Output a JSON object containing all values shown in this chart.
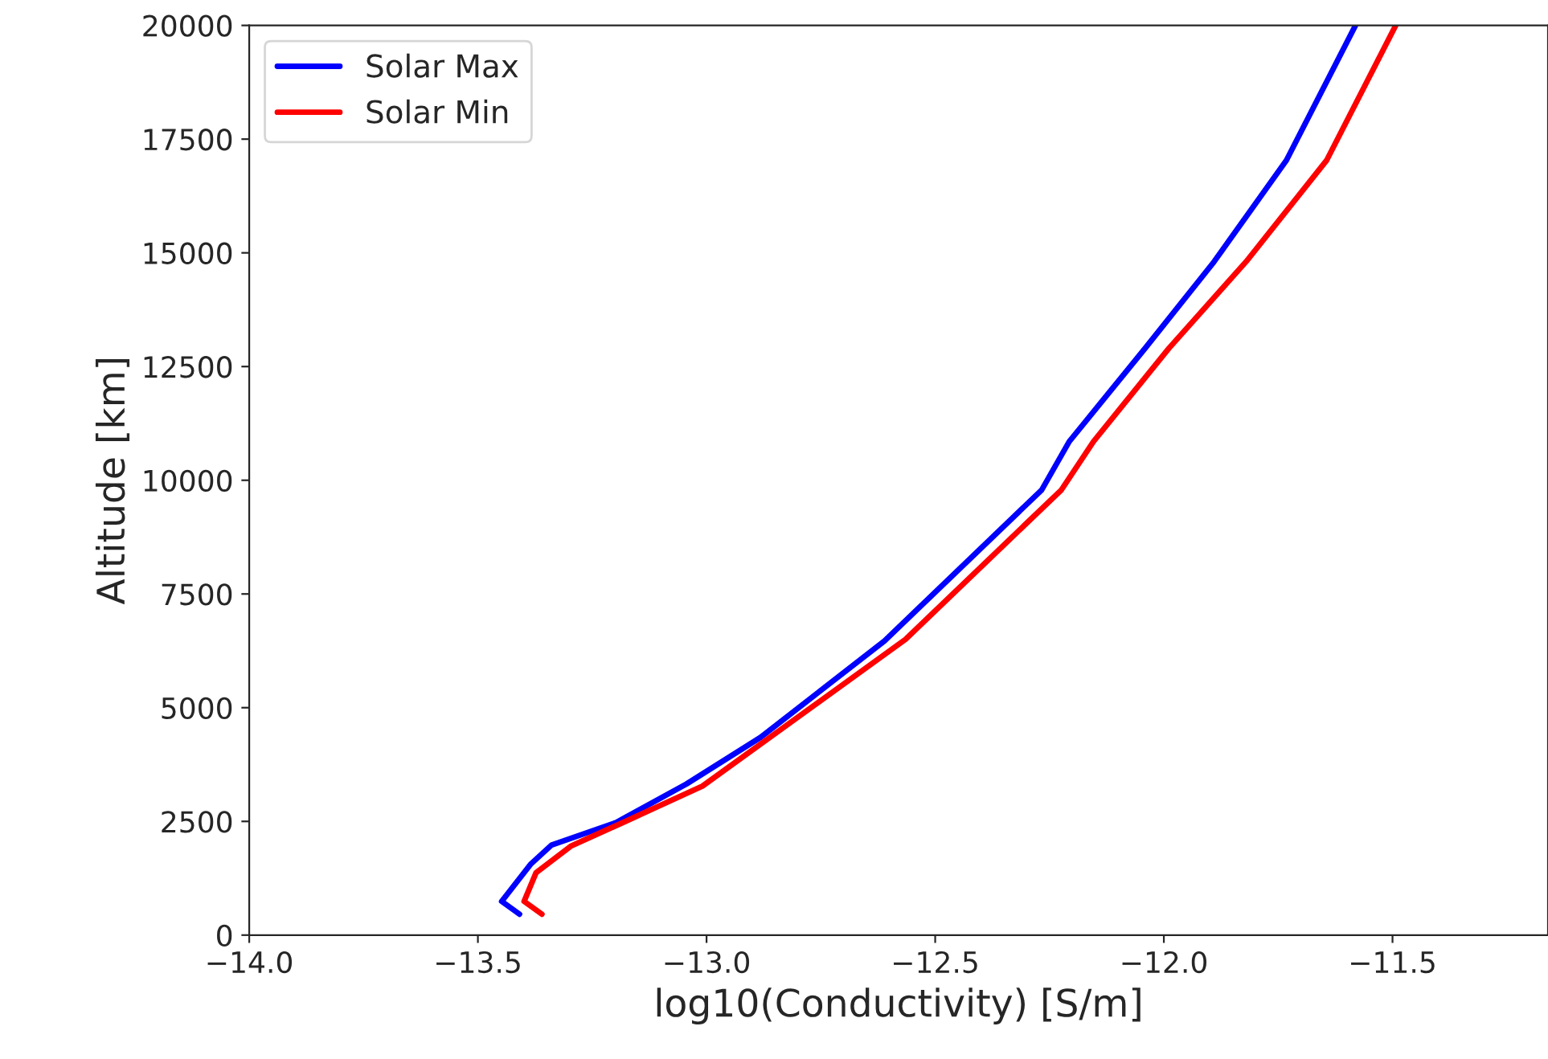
{
  "chart_data": {
    "type": "line",
    "xlabel": "log10(Conductivity) [S/m]",
    "ylabel": "Altitude [km]",
    "xlim": [
      -14.0,
      -11.16
    ],
    "xticks": [
      {
        "value": -14.0,
        "label": "−14.0"
      },
      {
        "value": -13.5,
        "label": "−13.5"
      },
      {
        "value": -13.0,
        "label": "−13.0"
      },
      {
        "value": -12.5,
        "label": "−12.5"
      },
      {
        "value": -12.0,
        "label": "−12.0"
      },
      {
        "value": -11.5,
        "label": "−11.5"
      }
    ],
    "ylim": [
      0,
      20000
    ],
    "yticks": [
      0,
      2500,
      5000,
      7500,
      10000,
      12500,
      15000,
      17500,
      20000
    ],
    "legend": "top left",
    "grid": false,
    "series": [
      {
        "name": "Solar Max",
        "color": "#0000ff",
        "x": [
          -13.409,
          -13.448,
          -13.385,
          -13.339,
          -13.198,
          -13.044,
          -12.882,
          -12.611,
          -12.267,
          -12.207,
          -12.041,
          -11.89,
          -11.732,
          -11.581
        ],
        "values": [
          460,
          742,
          1555,
          1979,
          2474,
          3322,
          4347,
          6467,
          9789,
          10850,
          12900,
          14808,
          17034,
          20000
        ]
      },
      {
        "name": "Solar Min",
        "color": "#ff0000",
        "x": [
          -13.36,
          -13.399,
          -13.373,
          -13.297,
          -13.16,
          -13.009,
          -12.565,
          -12.224,
          -12.154,
          -11.989,
          -11.82,
          -11.644,
          -11.493
        ],
        "values": [
          460,
          742,
          1368,
          1954,
          2580,
          3276,
          6502,
          9789,
          10850,
          12900,
          14808,
          17034,
          20000
        ]
      }
    ]
  }
}
